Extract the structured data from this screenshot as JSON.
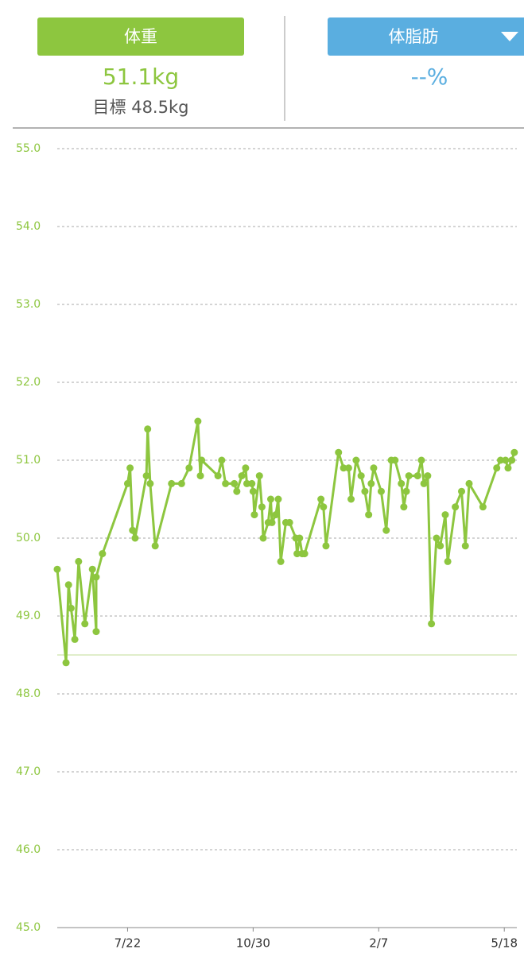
{
  "header": {
    "weight": {
      "label": "体重",
      "value": "51.1kg",
      "target": "目標 48.5kg"
    },
    "body_fat": {
      "label": "体脂肪",
      "value": "--%"
    }
  },
  "chart_data": {
    "type": "line",
    "color": "#8dc63f",
    "target_color": "#d6e8b8",
    "target_line": 48.5,
    "x": [
      "5/27",
      "6/3",
      "6/5",
      "6/7",
      "6/10",
      "6/13",
      "6/18",
      "6/24",
      "6/27",
      "6/27",
      "7/2",
      "7/22",
      "7/24",
      "7/26",
      "7/28",
      "8/6",
      "8/7",
      "8/9",
      "8/13",
      "8/26",
      "9/3",
      "9/9",
      "9/16",
      "9/18",
      "9/19",
      "10/2",
      "10/5",
      "10/8",
      "10/15",
      "10/17",
      "10/21",
      "10/24",
      "10/25",
      "10/29",
      "10/30",
      "10/31",
      "11/4",
      "11/6",
      "11/7",
      "11/11",
      "11/13",
      "11/14",
      "11/17",
      "11/19",
      "11/21",
      "11/25",
      "11/28",
      "12/3",
      "12/4",
      "12/6",
      "12/8",
      "12/10",
      "12/23",
      "12/25",
      "12/27",
      "1/6",
      "1/10",
      "1/14",
      "1/16",
      "1/20",
      "1/24",
      "1/27",
      "1/30",
      "2/1",
      "2/3",
      "2/9",
      "2/13",
      "2/17",
      "2/20",
      "2/25",
      "2/27",
      "3/1",
      "3/3",
      "3/10",
      "3/13",
      "3/15",
      "3/18",
      "3/21",
      "3/25",
      "3/28",
      "4/1",
      "4/3",
      "4/9",
      "4/14",
      "4/17",
      "4/20",
      "5/1",
      "5/12",
      "5/15",
      "5/19",
      "5/21",
      "5/24",
      "5/26"
    ],
    "values": [
      49.6,
      48.4,
      49.4,
      49.1,
      48.7,
      49.7,
      48.9,
      49.6,
      48.8,
      49.5,
      49.8,
      50.7,
      50.9,
      50.1,
      50.0,
      50.8,
      51.4,
      50.7,
      49.9,
      50.7,
      50.7,
      50.9,
      51.5,
      50.8,
      51.0,
      50.8,
      51.0,
      50.7,
      50.7,
      50.6,
      50.8,
      50.9,
      50.7,
      50.7,
      50.6,
      50.3,
      50.8,
      50.4,
      50.0,
      50.2,
      50.5,
      50.2,
      50.3,
      50.5,
      49.7,
      50.2,
      50.2,
      50.0,
      49.8,
      50.0,
      49.8,
      49.8,
      50.5,
      50.4,
      49.9,
      51.1,
      50.9,
      50.9,
      50.5,
      51.0,
      50.8,
      50.6,
      50.3,
      50.7,
      50.9,
      50.6,
      50.1,
      51.0,
      51.0,
      50.7,
      50.4,
      50.6,
      50.8,
      50.8,
      51.0,
      50.7,
      50.8,
      48.9,
      50.0,
      49.9,
      50.3,
      49.7,
      50.4,
      50.6,
      49.9,
      50.7,
      50.4,
      50.9,
      51.0,
      51.0,
      50.9,
      51.0,
      51.1
    ],
    "xlim": [
      "5/27",
      "5/28"
    ],
    "xticks": [
      "7/22",
      "10/30",
      "2/7",
      "5/18"
    ],
    "ylim": [
      45,
      55
    ],
    "yticks": [
      {
        "value": 45,
        "label": "45.0"
      },
      {
        "value": 46,
        "label": "46.0"
      },
      {
        "value": 47,
        "label": "47.0"
      },
      {
        "value": 48,
        "label": "48.0"
      },
      {
        "value": 49,
        "label": "49.0"
      },
      {
        "value": 50,
        "label": "50.0"
      },
      {
        "value": 51,
        "label": "51.0"
      },
      {
        "value": 52,
        "label": "52.0"
      },
      {
        "value": 53,
        "label": "53.0"
      },
      {
        "value": 54,
        "label": "54.0"
      },
      {
        "value": 55,
        "label": "55.0"
      }
    ],
    "grid": true
  }
}
